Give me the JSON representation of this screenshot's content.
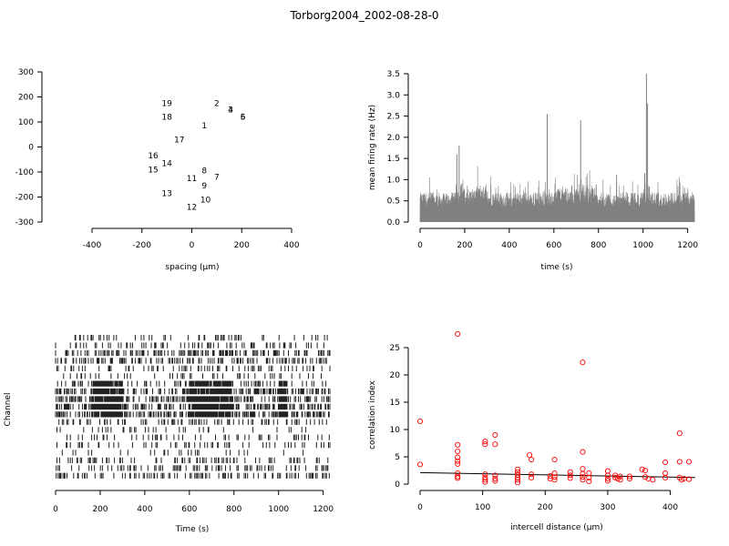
{
  "title": "Torborg2004_2002-08-28-0",
  "chart_data": [
    {
      "type": "scatter",
      "panel": "electrode-layout",
      "xlabel": "spacing (µm)",
      "ylabel": "",
      "xlim": [
        -400,
        400
      ],
      "ylim": [
        -300,
        300
      ],
      "xticks": [
        -400,
        -200,
        0,
        200,
        400
      ],
      "yticks": [
        -300,
        -200,
        -100,
        0,
        100,
        200,
        300
      ],
      "points": [
        {
          "label": "1",
          "x": 50,
          "y": 85
        },
        {
          "label": "2",
          "x": 100,
          "y": 175
        },
        {
          "label": "3",
          "x": 155,
          "y": 150
        },
        {
          "label": "4",
          "x": 155,
          "y": 150
        },
        {
          "label": "5",
          "x": 205,
          "y": 120
        },
        {
          "label": "6",
          "x": 205,
          "y": 120
        },
        {
          "label": "7",
          "x": 100,
          "y": -120
        },
        {
          "label": "8",
          "x": 50,
          "y": -95
        },
        {
          "label": "9",
          "x": 50,
          "y": -155
        },
        {
          "label": "10",
          "x": 55,
          "y": -210
        },
        {
          "label": "11",
          "x": 0,
          "y": -125
        },
        {
          "label": "12",
          "x": 0,
          "y": -240
        },
        {
          "label": "13",
          "x": -100,
          "y": -185
        },
        {
          "label": "14",
          "x": -100,
          "y": -65
        },
        {
          "label": "15",
          "x": -155,
          "y": -90
        },
        {
          "label": "16",
          "x": -155,
          "y": -35
        },
        {
          "label": "17",
          "x": -50,
          "y": 30
        },
        {
          "label": "18",
          "x": -100,
          "y": 120
        },
        {
          "label": "19",
          "x": -100,
          "y": 175
        }
      ]
    },
    {
      "type": "area",
      "panel": "mean-firing-rate",
      "xlabel": "time (s)",
      "ylabel": "mean firing rate (Hz)",
      "xlim": [
        0,
        1230
      ],
      "ylim": [
        0,
        3.5
      ],
      "xticks": [
        0,
        200,
        400,
        600,
        800,
        1000,
        1200
      ],
      "yticks": [
        0.0,
        0.5,
        1.0,
        1.5,
        2.0,
        2.5,
        3.0,
        3.5
      ],
      "color": "#808080",
      "peaks": [
        {
          "x": 165,
          "y": 1.6
        },
        {
          "x": 175,
          "y": 1.8
        },
        {
          "x": 570,
          "y": 2.55
        },
        {
          "x": 720,
          "y": 2.4
        },
        {
          "x": 1015,
          "y": 3.5
        },
        {
          "x": 1020,
          "y": 2.8
        }
      ]
    },
    {
      "type": "raster",
      "panel": "spike-raster",
      "xlabel": "Time (s)",
      "ylabel": "Channel",
      "xlim": [
        0,
        1230
      ],
      "xticks": [
        0,
        200,
        400,
        600,
        800,
        1000,
        1200
      ],
      "channels": 19,
      "bursts": [
        [
          160,
          300
        ],
        [
          600,
          790
        ],
        [
          1000,
          1040
        ]
      ]
    },
    {
      "type": "scatter",
      "panel": "correlation-index",
      "xlabel": "intercell distance (µm)",
      "ylabel": "correlation index",
      "xlim": [
        0,
        440
      ],
      "ylim": [
        0,
        27.5
      ],
      "xticks": [
        0,
        100,
        200,
        300,
        400
      ],
      "yticks": [
        0,
        5,
        10,
        15,
        20,
        25
      ],
      "marker_color": "#ff0000",
      "fit_line": [
        [
          0,
          2.1
        ],
        [
          440,
          1.2
        ]
      ],
      "points": [
        {
          "x": 0,
          "y": 11.5
        },
        {
          "x": 0,
          "y": 3.6
        },
        {
          "x": 60,
          "y": 27.5
        },
        {
          "x": 60,
          "y": 7.2
        },
        {
          "x": 60,
          "y": 6.0
        },
        {
          "x": 60,
          "y": 4.9
        },
        {
          "x": 60,
          "y": 4.2
        },
        {
          "x": 60,
          "y": 3.7
        },
        {
          "x": 60,
          "y": 2.0
        },
        {
          "x": 60,
          "y": 1.4
        },
        {
          "x": 60,
          "y": 1.1
        },
        {
          "x": 104,
          "y": 7.8
        },
        {
          "x": 104,
          "y": 7.3
        },
        {
          "x": 104,
          "y": 1.8
        },
        {
          "x": 104,
          "y": 1.2
        },
        {
          "x": 104,
          "y": 0.8
        },
        {
          "x": 104,
          "y": 0.4
        },
        {
          "x": 120,
          "y": 9.0
        },
        {
          "x": 120,
          "y": 7.3
        },
        {
          "x": 120,
          "y": 1.6
        },
        {
          "x": 120,
          "y": 1.0
        },
        {
          "x": 120,
          "y": 0.6
        },
        {
          "x": 156,
          "y": 2.7
        },
        {
          "x": 156,
          "y": 2.2
        },
        {
          "x": 156,
          "y": 1.7
        },
        {
          "x": 156,
          "y": 1.2
        },
        {
          "x": 156,
          "y": 0.8
        },
        {
          "x": 156,
          "y": 0.3
        },
        {
          "x": 175,
          "y": 5.3
        },
        {
          "x": 178,
          "y": 4.5
        },
        {
          "x": 178,
          "y": 1.8
        },
        {
          "x": 178,
          "y": 1.2
        },
        {
          "x": 208,
          "y": 1.5
        },
        {
          "x": 208,
          "y": 1.0
        },
        {
          "x": 215,
          "y": 4.5
        },
        {
          "x": 215,
          "y": 2.0
        },
        {
          "x": 215,
          "y": 1.3
        },
        {
          "x": 215,
          "y": 0.8
        },
        {
          "x": 240,
          "y": 2.2
        },
        {
          "x": 240,
          "y": 1.6
        },
        {
          "x": 240,
          "y": 1.1
        },
        {
          "x": 260,
          "y": 22.3
        },
        {
          "x": 260,
          "y": 5.9
        },
        {
          "x": 260,
          "y": 2.8
        },
        {
          "x": 260,
          "y": 1.9
        },
        {
          "x": 260,
          "y": 1.3
        },
        {
          "x": 260,
          "y": 0.8
        },
        {
          "x": 270,
          "y": 2.0
        },
        {
          "x": 270,
          "y": 1.2
        },
        {
          "x": 270,
          "y": 0.5
        },
        {
          "x": 300,
          "y": 2.4
        },
        {
          "x": 300,
          "y": 1.6
        },
        {
          "x": 300,
          "y": 1.0
        },
        {
          "x": 300,
          "y": 0.6
        },
        {
          "x": 312,
          "y": 1.6
        },
        {
          "x": 312,
          "y": 1.2
        },
        {
          "x": 316,
          "y": 1.0
        },
        {
          "x": 320,
          "y": 1.4
        },
        {
          "x": 320,
          "y": 0.8
        },
        {
          "x": 335,
          "y": 1.4
        },
        {
          "x": 335,
          "y": 1.0
        },
        {
          "x": 355,
          "y": 2.7
        },
        {
          "x": 360,
          "y": 2.5
        },
        {
          "x": 360,
          "y": 1.3
        },
        {
          "x": 365,
          "y": 1.0
        },
        {
          "x": 372,
          "y": 0.8
        },
        {
          "x": 392,
          "y": 4.0
        },
        {
          "x": 392,
          "y": 2.0
        },
        {
          "x": 392,
          "y": 1.2
        },
        {
          "x": 415,
          "y": 9.3
        },
        {
          "x": 415,
          "y": 4.1
        },
        {
          "x": 415,
          "y": 1.2
        },
        {
          "x": 418,
          "y": 0.8
        },
        {
          "x": 422,
          "y": 1.0
        },
        {
          "x": 430,
          "y": 4.1
        },
        {
          "x": 430,
          "y": 0.9
        }
      ]
    }
  ]
}
